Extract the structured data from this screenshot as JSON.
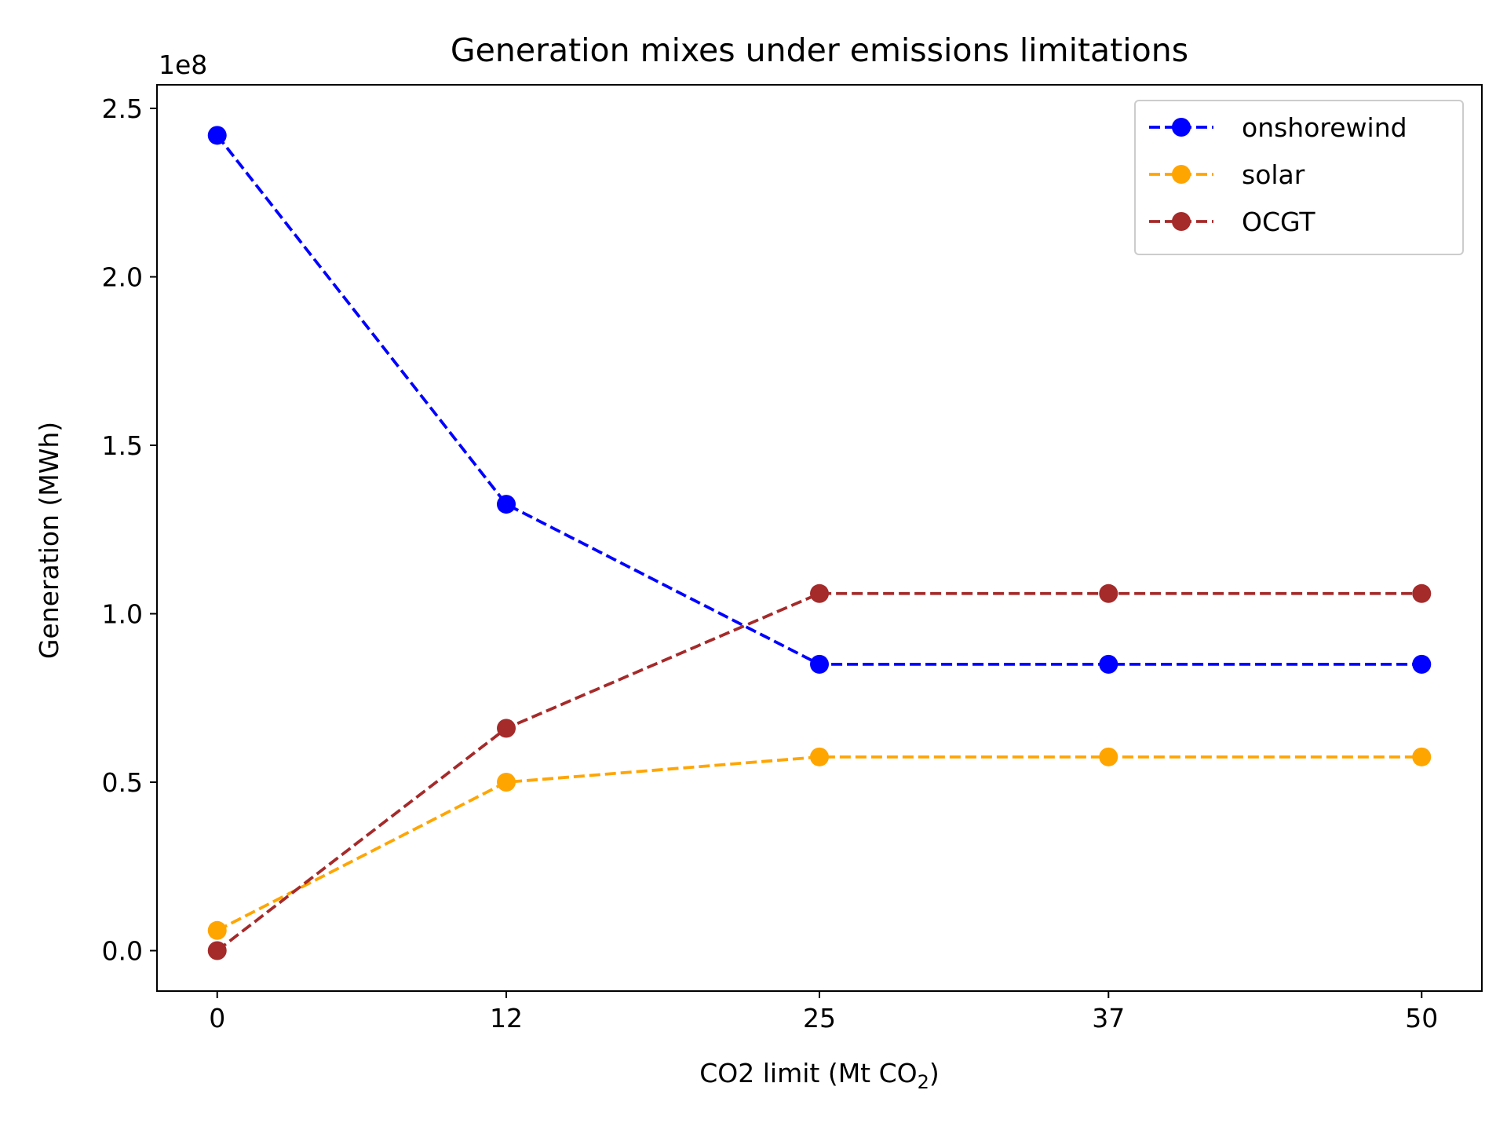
{
  "chart_data": {
    "type": "line",
    "title": "Generation mixes under emissions limitations",
    "xlabel": "CO2 limit (Mt CO",
    "xlabel_subscript": "2",
    "xlabel_suffix": ")",
    "ylabel": "Generation (MWh)",
    "y_offset_label": "1e8",
    "x_ticks": [
      "0",
      "12",
      "25",
      "37",
      "50"
    ],
    "y_ticks": [
      "0.0",
      "0.5",
      "1.0",
      "1.5",
      "2.0",
      "2.5"
    ],
    "x": [
      0,
      12,
      25,
      37,
      50
    ],
    "xlim": [
      -2.5,
      52.5
    ],
    "ylim": [
      -12000000,
      257000000
    ],
    "grid": false,
    "legend_position": "top-right",
    "series": [
      {
        "name": "onshorewind",
        "color": "#0000ff",
        "values": [
          242000000,
          132500000,
          85000000,
          85000000,
          85000000
        ]
      },
      {
        "name": "solar",
        "color": "#ffa500",
        "values": [
          6000000,
          50000000,
          57500000,
          57500000,
          57500000
        ]
      },
      {
        "name": "OCGT",
        "color": "#a52a2a",
        "values": [
          0,
          66000000,
          106000000,
          106000000,
          106000000
        ]
      }
    ]
  }
}
